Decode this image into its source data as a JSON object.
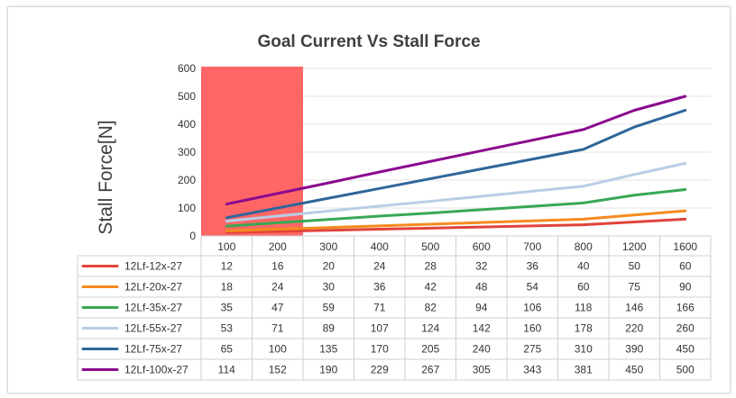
{
  "chart_data": {
    "type": "line",
    "title": "Goal Current Vs Stall Force",
    "ylabel": "Stall Force[N]",
    "xlabel": "",
    "ylim": [
      0,
      600
    ],
    "yticks": [
      "0",
      "100",
      "200",
      "300",
      "400",
      "500",
      "600"
    ],
    "categories": [
      "100",
      "200",
      "300",
      "400",
      "500",
      "600",
      "700",
      "800",
      "1200",
      "1600"
    ],
    "highlight": {
      "from_category": "100",
      "to_category": "200",
      "color": "#ff5f5f"
    },
    "grid": true,
    "legend": "data-table-left",
    "series": [
      {
        "name": "12Lf-12x-27",
        "color": "#e0433b",
        "values": [
          12,
          16,
          20,
          24,
          28,
          32,
          36,
          40,
          50,
          60
        ]
      },
      {
        "name": "12Lf-20x-27",
        "color": "#f58a1f",
        "values": [
          18,
          24,
          30,
          36,
          42,
          48,
          54,
          60,
          75,
          90
        ]
      },
      {
        "name": "12Lf-35x-27",
        "color": "#38a853",
        "values": [
          35,
          47,
          59,
          71,
          82,
          94,
          106,
          118,
          146,
          166
        ]
      },
      {
        "name": "12Lf-55x-27",
        "color": "#b9cde6",
        "values": [
          53,
          71,
          89,
          107,
          124,
          142,
          160,
          178,
          220,
          260
        ]
      },
      {
        "name": "12Lf-75x-27",
        "color": "#2f6699",
        "values": [
          65,
          100,
          135,
          170,
          205,
          240,
          275,
          310,
          390,
          450
        ]
      },
      {
        "name": "12Lf-100x-27",
        "color": "#8b0a8e",
        "values": [
          114,
          152,
          190,
          229,
          267,
          305,
          343,
          381,
          450,
          500
        ]
      }
    ]
  }
}
